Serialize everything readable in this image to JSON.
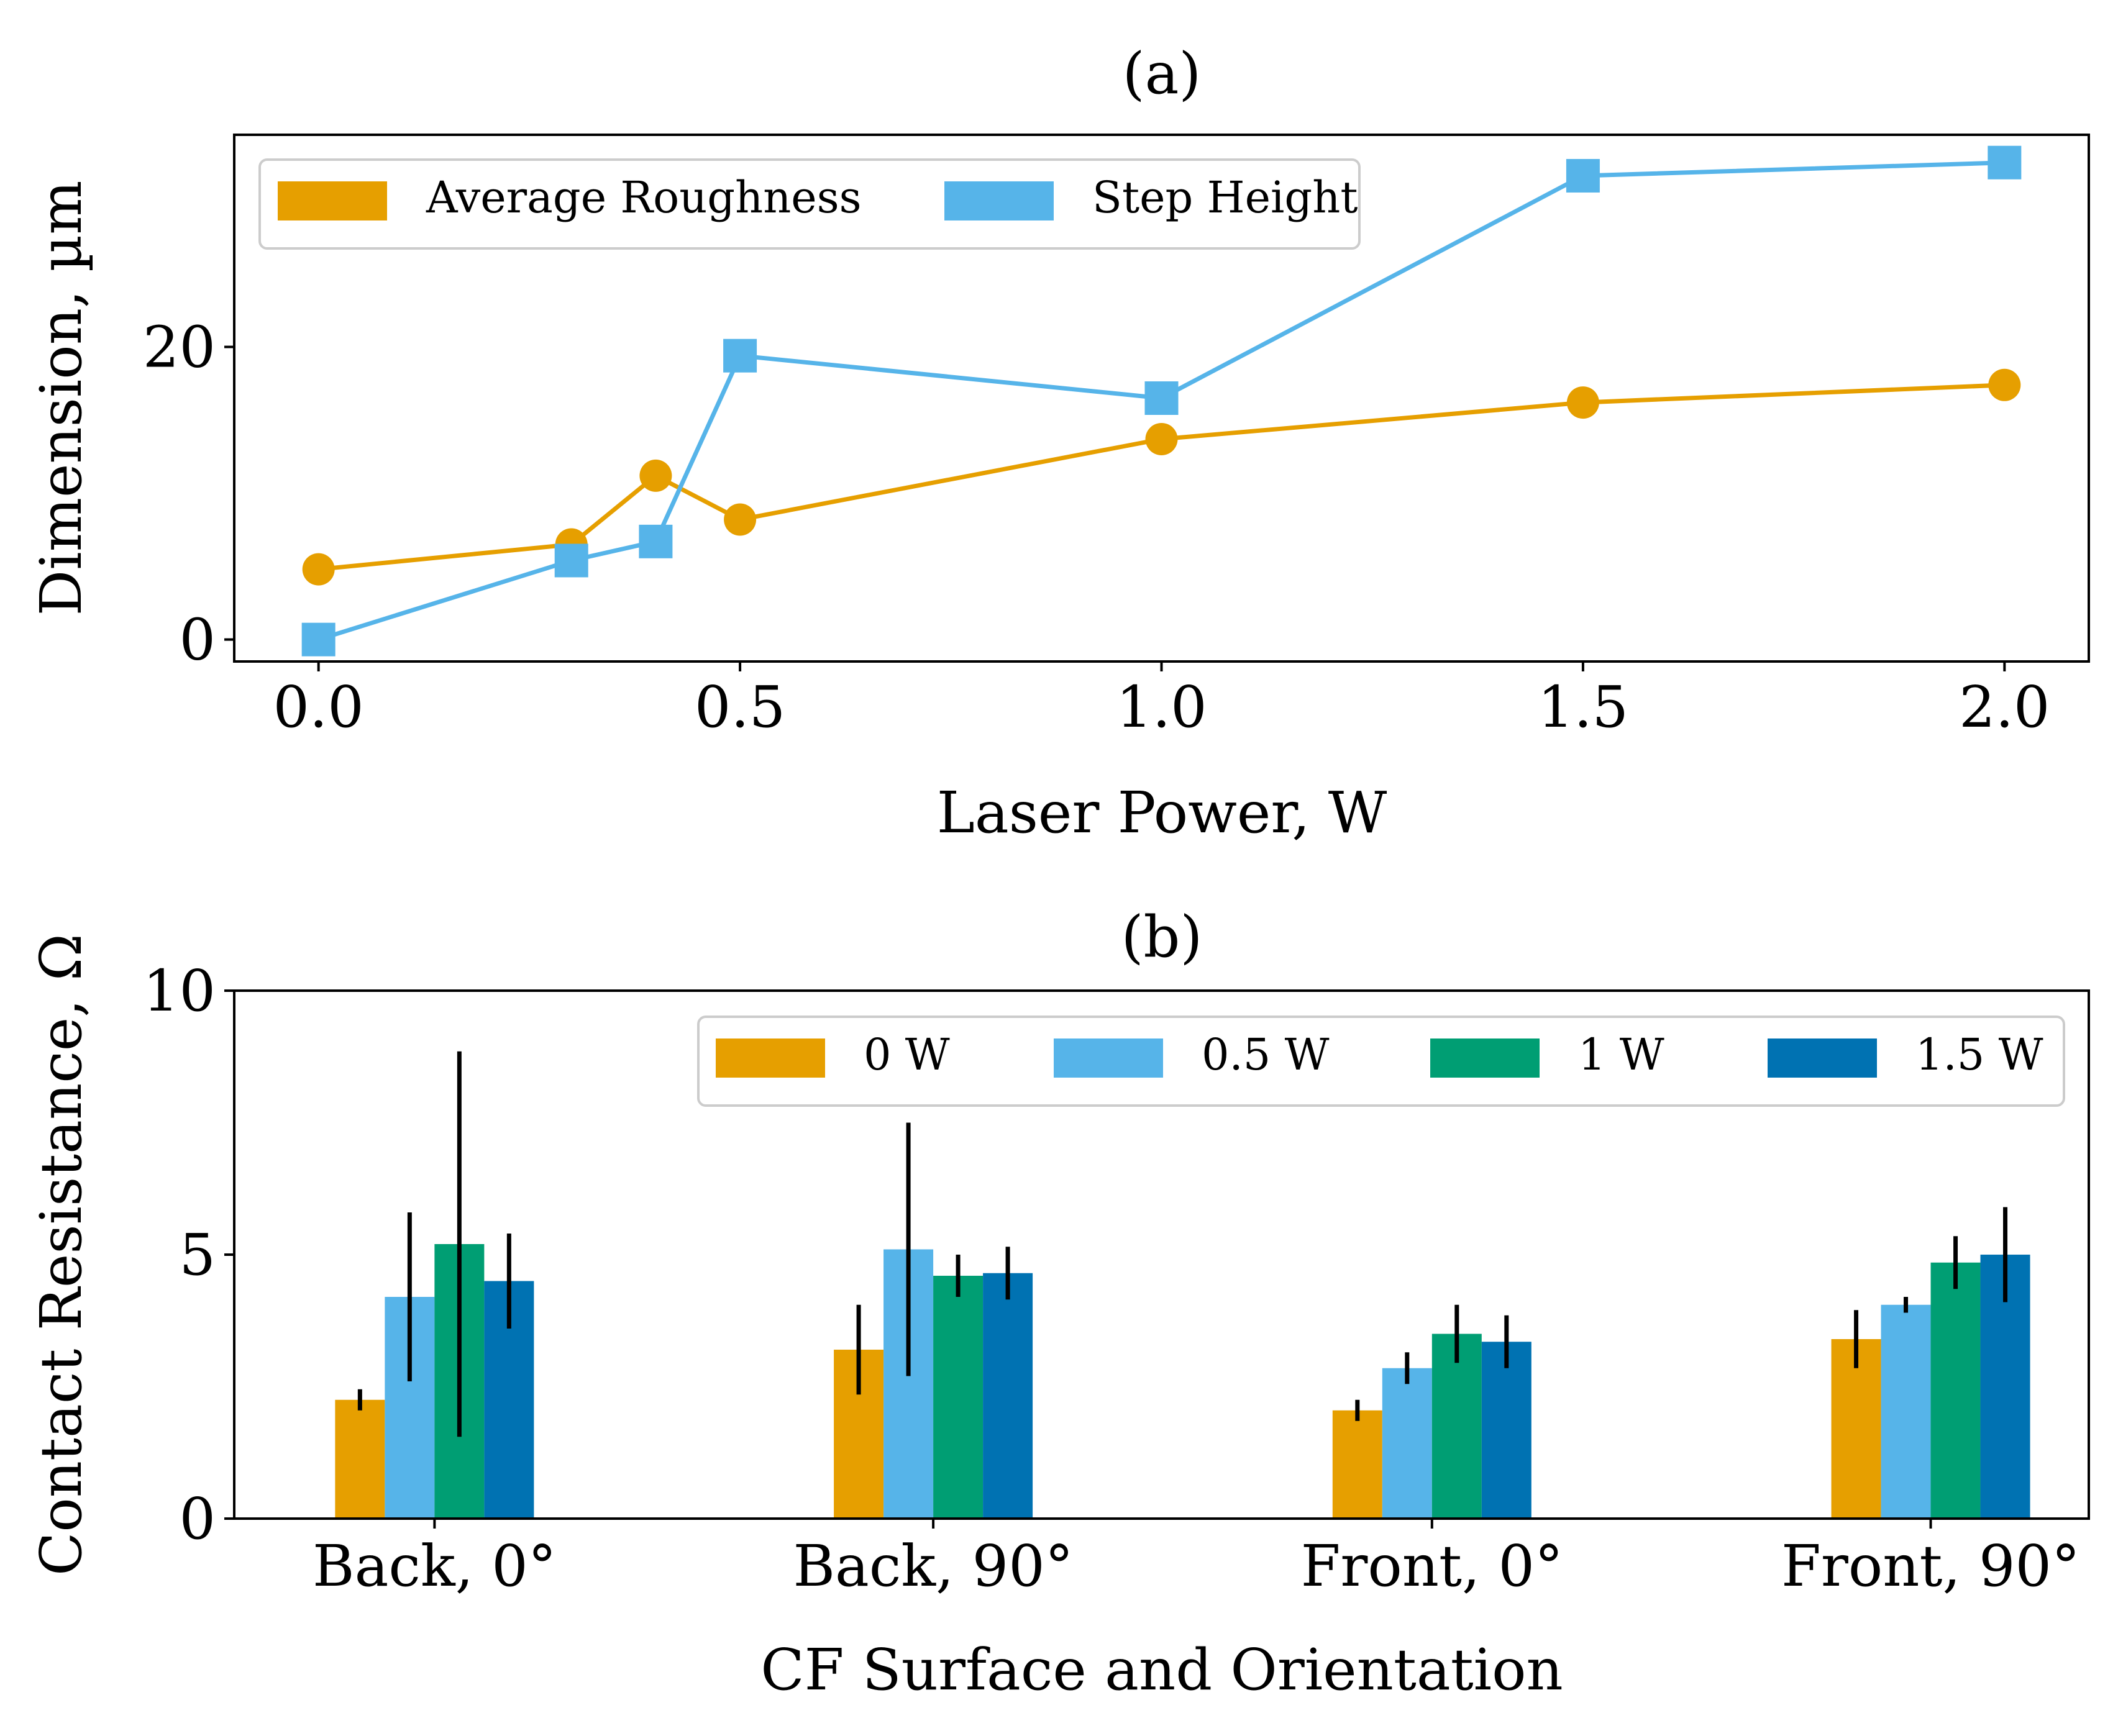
{
  "colors": {
    "orange": "#E69F00",
    "sky": "#56B4E9",
    "green": "#009E73",
    "blue": "#0072B2",
    "error": "#000000"
  },
  "chart_data": [
    {
      "type": "line",
      "title": "(a)",
      "xlabel": "Laser Power, W",
      "ylabel": "Dimension, µm",
      "xlim": [
        -0.1,
        2.1
      ],
      "ylim": [
        -1.5,
        34.5
      ],
      "xticks": [
        0.0,
        0.5,
        1.0,
        1.5,
        2.0
      ],
      "xtick_labels": [
        "0.0",
        "0.5",
        "1.0",
        "1.5",
        "2.0"
      ],
      "yticks": [
        0,
        20
      ],
      "ytick_labels": [
        "0",
        "20"
      ],
      "grid": false,
      "legend": "top-left",
      "series": [
        {
          "name": "Average Roughness",
          "marker": "circle",
          "color": "#E69F00",
          "x": [
            0.0,
            0.3,
            0.4,
            0.5,
            1.0,
            1.5,
            2.0
          ],
          "y": [
            4.8,
            6.5,
            11.2,
            8.2,
            13.7,
            16.2,
            17.4
          ]
        },
        {
          "name": "Step Height",
          "marker": "square",
          "color": "#56B4E9",
          "x": [
            0.0,
            0.3,
            0.4,
            0.5,
            1.0,
            1.5,
            2.0
          ],
          "y": [
            0.0,
            5.4,
            6.7,
            19.4,
            16.5,
            31.7,
            32.6
          ]
        }
      ]
    },
    {
      "type": "bar",
      "title": "(b)",
      "xlabel": "CF Surface and Orientation",
      "ylabel": "Contact Resistance, Ω",
      "ylim": [
        0,
        10
      ],
      "yticks": [
        0,
        5,
        10
      ],
      "ytick_labels": [
        "0",
        "5",
        "10"
      ],
      "grid": false,
      "legend": "top-right",
      "categories": [
        "Back, 0°",
        "Back, 90°",
        "Front, 0°",
        "Front, 90°"
      ],
      "series": [
        {
          "name": "0 W",
          "color": "#E69F00",
          "values": [
            2.25,
            3.2,
            2.05,
            3.4
          ],
          "errors": [
            0.2,
            0.85,
            0.2,
            0.55
          ]
        },
        {
          "name": "0.5 W",
          "color": "#56B4E9",
          "values": [
            4.2,
            5.1,
            2.85,
            4.05
          ],
          "errors": [
            1.6,
            2.4,
            0.3,
            0.15
          ]
        },
        {
          "name": "1 W",
          "color": "#009E73",
          "values": [
            5.2,
            4.6,
            3.5,
            4.85
          ],
          "errors": [
            3.65,
            0.4,
            0.55,
            0.5
          ]
        },
        {
          "name": "1.5 W",
          "color": "#0072B2",
          "values": [
            4.5,
            4.65,
            3.35,
            5.0
          ],
          "errors": [
            0.9,
            0.5,
            0.5,
            0.9
          ]
        }
      ]
    }
  ]
}
